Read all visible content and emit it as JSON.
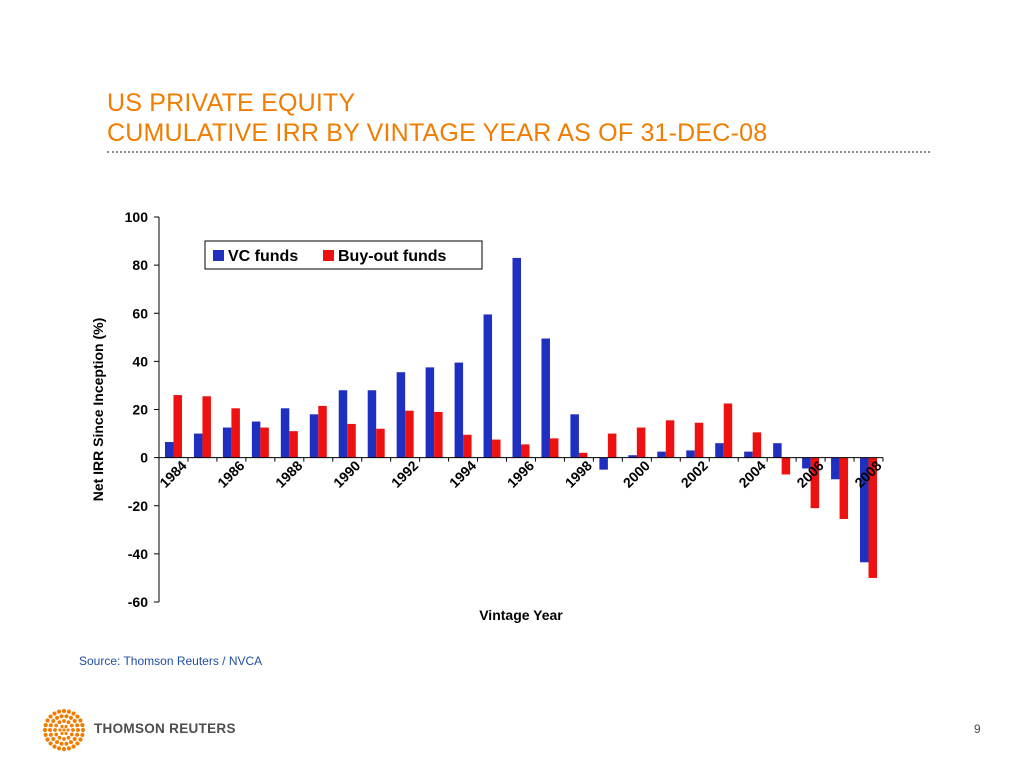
{
  "slide": {
    "title_line1": "US PRIVATE EQUITY",
    "title_line2": "CUMULATIVE IRR BY VINTAGE YEAR AS OF 31-DEC-08",
    "source": "Source: Thomson Reuters / NVCA",
    "logo_text": "THOMSON REUTERS",
    "page_number": "9",
    "colors": {
      "title": "#f07d00",
      "source": "#1f4ea3",
      "logo": "#f07d00"
    }
  },
  "chart_data": {
    "type": "bar",
    "title": "",
    "xlabel": "Vintage Year",
    "ylabel": "Net IRR Since Inception (%)",
    "ylim": [
      -60,
      100
    ],
    "yticks": [
      100,
      80,
      60,
      40,
      20,
      0,
      -20,
      -40,
      -60
    ],
    "categories": [
      "1984",
      "1985",
      "1986",
      "1987",
      "1988",
      "1989",
      "1990",
      "1991",
      "1992",
      "1993",
      "1994",
      "1995",
      "1996",
      "1997",
      "1998",
      "1999",
      "2000",
      "2001",
      "2002",
      "2003",
      "2004",
      "2005",
      "2006",
      "2007",
      "2008"
    ],
    "xtick_labels": [
      "1984",
      "1986",
      "1988",
      "1990",
      "1992",
      "1994",
      "1996",
      "1998",
      "2000",
      "2002",
      "2004",
      "2006",
      "2008"
    ],
    "legend_position": "top-left",
    "grid": false,
    "series": [
      {
        "name": "VC funds",
        "color": "#1f2fbf",
        "values": [
          6.5,
          10,
          12.5,
          15,
          20.5,
          18,
          28,
          28,
          35.5,
          37.5,
          39.5,
          59.5,
          83,
          49.5,
          18,
          -5,
          1,
          2.5,
          3,
          6,
          2.5,
          6,
          -4.5,
          -9,
          -43.5
        ]
      },
      {
        "name": "Buy-out funds",
        "color": "#ee1111",
        "values": [
          26,
          25.5,
          20.5,
          12.5,
          11,
          21.5,
          14,
          12,
          19.5,
          19,
          9.5,
          7.5,
          5.5,
          8,
          2,
          10,
          12.5,
          15.5,
          14.5,
          22.5,
          10.5,
          -7,
          -21,
          -25.5,
          -50
        ]
      }
    ]
  }
}
